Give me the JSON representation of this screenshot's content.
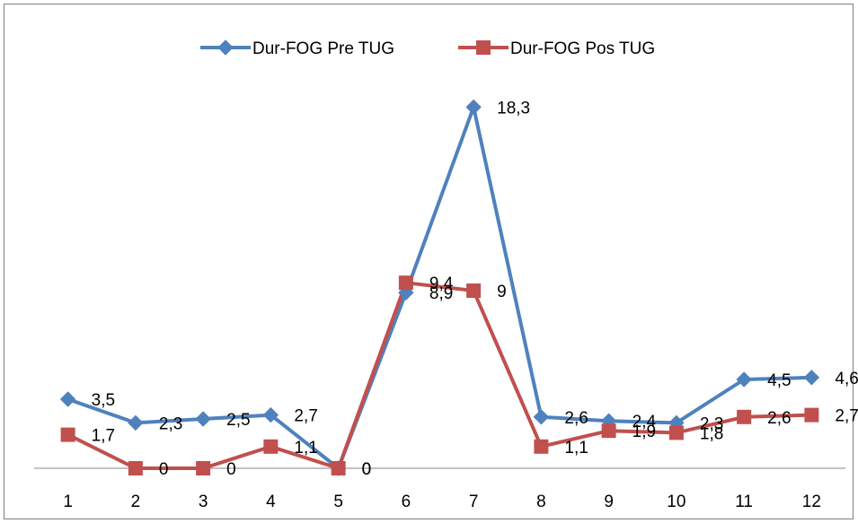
{
  "chart_data": {
    "type": "line",
    "categories": [
      "1",
      "2",
      "3",
      "4",
      "5",
      "6",
      "7",
      "8",
      "9",
      "10",
      "11",
      "12"
    ],
    "series": [
      {
        "name": "Dur-FOG Pre TUG",
        "color": "#4f81bd",
        "marker": "diamond",
        "values": [
          3.5,
          2.3,
          2.5,
          2.7,
          0,
          8.9,
          18.3,
          2.6,
          2.4,
          2.3,
          4.5,
          4.6
        ],
        "labels": [
          "3,5",
          "2,3",
          "2,5",
          "2,7",
          "0",
          "8,9",
          "18,3",
          "2,6",
          "2,4",
          "2,3",
          "4,5",
          "4,6"
        ]
      },
      {
        "name": "Dur-FOG Pos TUG",
        "color": "#c0504d",
        "marker": "square",
        "values": [
          1.7,
          0,
          0,
          1.1,
          0,
          9.4,
          9,
          1.1,
          1.9,
          1.8,
          2.6,
          2.7
        ],
        "labels": [
          "1,7",
          "0",
          "0",
          "1,1",
          "0",
          "9,4",
          "9",
          "1,1",
          "1,9",
          "1,8",
          "2,6",
          "2,7"
        ]
      }
    ],
    "ylim": [
      0,
      20
    ],
    "grid": false,
    "legend_position": "top"
  }
}
